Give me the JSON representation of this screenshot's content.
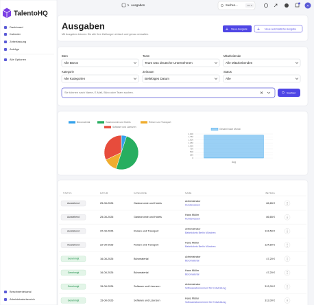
{
  "sidebar": {
    "brand": "TalentoHQ",
    "nav": [
      "Dashboard",
      "Kalender",
      "Zeiterfassung",
      "Anträge"
    ],
    "more": "Alle Optionen",
    "footer": [
      "Beschwerdekanal",
      "Administratorbereich"
    ]
  },
  "topbar": {
    "breadcrumb": "Ausgaben",
    "search": "Suchen...",
    "shortcut": "Ctrl K",
    "avatar": "A"
  },
  "header": {
    "title": "Ausgaben",
    "subtitle": "Mit Ausgaben können Sie alle Ihre Zahlungen einfach und genau verwalten.",
    "buttons": [
      "Neue Ausgabe",
      "Neue automatische Ausgabe"
    ]
  },
  "filters": {
    "fields": [
      {
        "label": "Büro",
        "value": "Alle Büros"
      },
      {
        "label": "Team",
        "value": "Team Das deutsche Unternehmen"
      },
      {
        "label": "Mitarbeitende",
        "value": "Alle Mitarbeitenden"
      },
      {
        "label": "Kategorie",
        "value": "Alle Kategorien"
      },
      {
        "label": "Zeitraum",
        "value": "Beliebiges Datum"
      },
      {
        "label": "Status",
        "value": "Alle"
      }
    ],
    "search_placeholder": "Sie können nach Name, E-Mail, Büro oder Team suchen.",
    "search_button": "Suchen"
  },
  "chart_data": [
    {
      "type": "pie",
      "categories": [
        "Büromaterial",
        "Gastronomie und Hotels",
        "Reisen und Transport",
        "Software und Lizenzen"
      ],
      "values": [
        5,
        50,
        13,
        32
      ],
      "colors": [
        "#36a2eb",
        "#27ae60",
        "#f0ad2e",
        "#e74c3c"
      ]
    },
    {
      "type": "bar",
      "categories": [
        "Aug"
      ],
      "series": [
        {
          "name": "Gesamt nach Monat",
          "color": "#36a2eb",
          "values": [
            1900
          ]
        }
      ],
      "ylim": [
        0,
        2000
      ],
      "yticks": [
        0,
        250,
        500,
        750,
        {
          "value": 1000,
          "label": "1,000"
        },
        {
          "value": 1250,
          "label": "1,250"
        },
        {
          "value": 1500,
          "label": "1,500"
        },
        {
          "value": 1750,
          "label": "1,750"
        },
        {
          "value": 2000,
          "label": "2,000"
        }
      ],
      "grid": true
    }
  ],
  "table": {
    "columns": [
      "STATUS",
      "DATUM",
      "KATEGORIE",
      "NAME",
      "BETRAG"
    ],
    "rows": [
      [
        "Ausstehend",
        "25-08-2026",
        "Gastronomie und Hotels",
        "Administrator",
        "Kundenessen",
        "86,65 €"
      ],
      [
        "Ausstehend",
        "25-08-2026",
        "Gastronomie und Hotels",
        "Hans Müller",
        "Kundenessen",
        "86,65 €"
      ],
      [
        "Ausstehend",
        "22-08-2026",
        "Reisen und Transport",
        "Administrator",
        "Bahntickets Berlin München",
        "124,50 €"
      ],
      [
        "Ausstehend",
        "22-08-2026",
        "Reisen und Transport",
        "Hans Müller",
        "Bahntickets Berlin München",
        "124,50 €"
      ],
      [
        "Genehmigt",
        "16-08-2026",
        "Büromaterial",
        "Administrator",
        "Büromaterial",
        "47,20 €"
      ],
      [
        "Genehmigt",
        "16-08-2026",
        "Büromaterial",
        "Hans Müller",
        "Büromaterial",
        "47,20 €"
      ],
      [
        "Genehmigt",
        "15-08-2026",
        "Software und Lizenzen",
        "Administrator",
        "Softwareabonnement für Entwicklung",
        "312,00 €"
      ],
      [
        "Genehmigt",
        "15-08-2026",
        "Software und Lizenzen",
        "Hans Müller",
        "Softwareabonnement für Entwicklung",
        "312,00 €"
      ]
    ]
  }
}
